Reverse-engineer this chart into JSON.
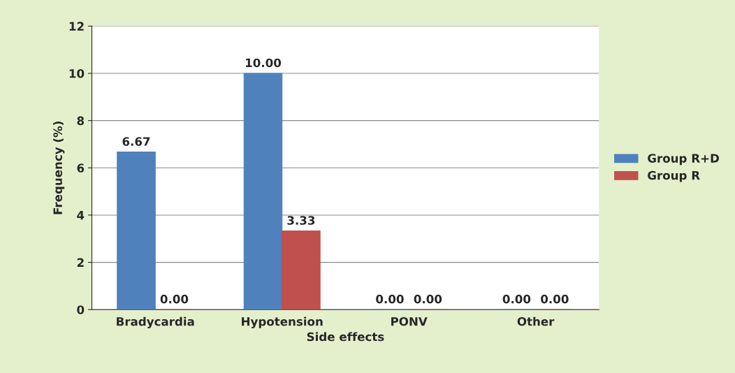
{
  "chart_data": {
    "type": "bar",
    "xlabel": "Side effects",
    "ylabel": "Frequency (%)",
    "categories": [
      "Bradycardia",
      "Hypotension",
      "PONV",
      "Other"
    ],
    "series": [
      {
        "name": "Group R+D",
        "color": "#4f81bd",
        "values": [
          6.67,
          10.0,
          0,
          0
        ],
        "value_labels": [
          "6.67",
          "10.00",
          "0.00",
          "0.00"
        ]
      },
      {
        "name": "Group R",
        "color": "#c0504d",
        "values": [
          0,
          3.33,
          0,
          0
        ],
        "value_labels": [
          "0.00",
          "3.33",
          "0.00",
          "0.00"
        ]
      }
    ],
    "ylim": [
      0,
      12
    ],
    "yticks": [
      0,
      2,
      4,
      6,
      8,
      10,
      12
    ],
    "grid": "y",
    "legend": "right"
  }
}
